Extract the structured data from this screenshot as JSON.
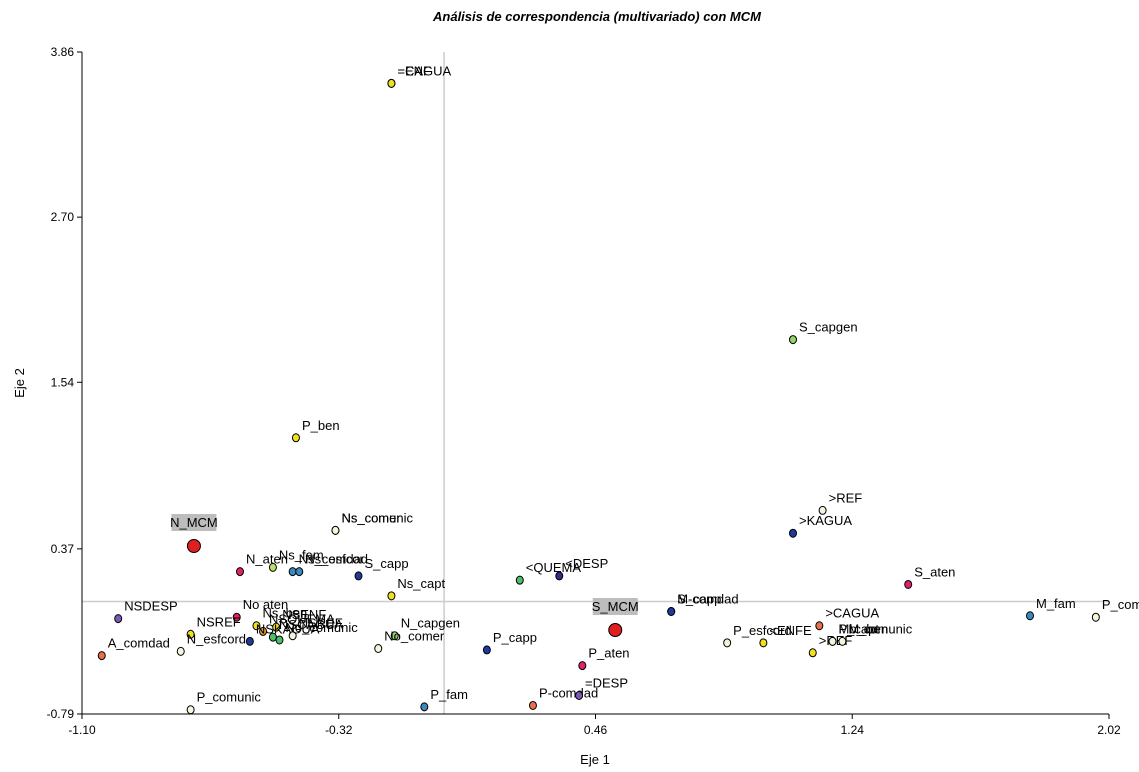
{
  "chart_data": {
    "type": "scatter",
    "title": "Análisis de correspondencia (multivariado) con MCM",
    "xlabel": "Eje 1",
    "ylabel": "Eje 2",
    "xlim": [
      -1.1,
      2.02
    ],
    "ylim": [
      -0.79,
      3.86
    ],
    "xticks": [
      "-1.10",
      "-0.32",
      "0.46",
      "1.24",
      "2.02"
    ],
    "yticks": [
      "-0.79",
      "0.37",
      "1.54",
      "2.70",
      "3.86"
    ],
    "reference_lines": {
      "x": 0.0,
      "y": 0.0
    },
    "points": [
      {
        "label": "=ENF",
        "x": -0.16,
        "y": 3.64,
        "color": "#f0e020"
      },
      {
        "label": "=CAGUA",
        "x": -0.16,
        "y": 3.64,
        "color": "#f0e020"
      },
      {
        "label": "S_capgen",
        "x": 1.06,
        "y": 1.84,
        "color": "#8ed66a"
      },
      {
        "label": "P_ben",
        "x": -0.45,
        "y": 1.15,
        "color": "#f0e020"
      },
      {
        "label": ">REF",
        "x": 1.15,
        "y": 0.64,
        "color": "#f5f5dc"
      },
      {
        "label": ">KAGUA",
        "x": 1.06,
        "y": 0.48,
        "color": "#1e3a9a"
      },
      {
        "label": "N_MCM",
        "x": -0.76,
        "y": 0.39,
        "color": "#e02020",
        "highlight": true
      },
      {
        "label": "Ns_comunic",
        "x": -0.33,
        "y": 0.5,
        "color": "#f5f5dc"
      },
      {
        "label": "Ns_comer",
        "x": -0.33,
        "y": 0.5,
        "color": "#f5f5dc"
      },
      {
        "label": "Ns_fam",
        "x": -0.52,
        "y": 0.24,
        "color": "#b8e068"
      },
      {
        "label": "Ns_comdad",
        "x": -0.46,
        "y": 0.21,
        "color": "#3a8ac0"
      },
      {
        "label": "Ns_esfcor",
        "x": -0.44,
        "y": 0.21,
        "color": "#3a8ac0"
      },
      {
        "label": "S_capp",
        "x": -0.26,
        "y": 0.18,
        "color": "#1e3a9a"
      },
      {
        "label": "N_aten",
        "x": -0.62,
        "y": 0.21,
        "color": "#e0206a"
      },
      {
        "label": "<QUEMA",
        "x": 0.23,
        "y": 0.15,
        "color": "#4cbf6a"
      },
      {
        "label": "<DESP",
        "x": 0.35,
        "y": 0.18,
        "color": "#3a2a8a"
      },
      {
        "label": "Ns_capt",
        "x": -0.16,
        "y": 0.04,
        "color": "#f0e020"
      },
      {
        "label": "S_capp",
        "x": 0.69,
        "y": -0.07,
        "color": "#1e3a9a"
      },
      {
        "label": "M-comdad",
        "x": 0.69,
        "y": -0.07,
        "color": "#1e3a9a"
      },
      {
        "label": "S_aten",
        "x": 1.41,
        "y": 0.12,
        "color": "#e0206a"
      },
      {
        "label": "M_fam",
        "x": 1.78,
        "y": -0.1,
        "color": "#3a8ac0"
      },
      {
        "label": "P_comer",
        "x": 1.98,
        "y": -0.11,
        "color": "#f5f5dc"
      },
      {
        "label": "NSDESP",
        "x": -0.99,
        "y": -0.12,
        "color": "#7a5ab8"
      },
      {
        "label": "No aten",
        "x": -0.63,
        "y": -0.11,
        "color": "#e0206a"
      },
      {
        "label": "Ns_ben",
        "x": -0.57,
        "y": -0.17,
        "color": "#f0e020"
      },
      {
        "label": "NSENF",
        "x": -0.51,
        "y": -0.18,
        "color": "#f0e020"
      },
      {
        "label": "NSREF",
        "x": -0.77,
        "y": -0.23,
        "color": "#f0e020"
      },
      {
        "label": "NSQUEMA",
        "x": -0.55,
        "y": -0.21,
        "color": "#e8a030"
      },
      {
        "label": "N_capgen",
        "x": -0.15,
        "y": -0.24,
        "color": "#8ed66a"
      },
      {
        "label": "NSREF",
        "x": -0.46,
        "y": -0.24,
        "color": "#f5f5dc"
      },
      {
        "label": "NSCAGUA",
        "x": -0.52,
        "y": -0.25,
        "color": "#4cbf6a"
      },
      {
        "label": "NSKAGUA",
        "x": -0.59,
        "y": -0.28,
        "color": "#1e3a9a"
      },
      {
        "label": "No_comunic",
        "x": -0.5,
        "y": -0.27,
        "color": "#4cbf6a"
      },
      {
        "label": "No_comer",
        "x": -0.2,
        "y": -0.33,
        "color": "#f5f5dc"
      },
      {
        "label": "N_esfcord",
        "x": -0.8,
        "y": -0.35,
        "color": "#f5f5dc"
      },
      {
        "label": "A_comdad",
        "x": -1.04,
        "y": -0.38,
        "color": "#e8704a"
      },
      {
        "label": "S_MCM",
        "x": 0.52,
        "y": -0.2,
        "color": "#e02020",
        "highlight": true
      },
      {
        "label": "P_capp",
        "x": 0.13,
        "y": -0.34,
        "color": "#1e3a9a"
      },
      {
        "label": "P_aten",
        "x": 0.42,
        "y": -0.45,
        "color": "#e0206a"
      },
      {
        "label": "P_esfcord",
        "x": 0.86,
        "y": -0.29,
        "color": "#f5f5dc"
      },
      {
        "label": "<ENFE",
        "x": 0.97,
        "y": -0.29,
        "color": "#f0e020"
      },
      {
        "label": ">REF",
        "x": 1.12,
        "y": -0.36,
        "color": "#f0e020"
      },
      {
        "label": ">CAGUA",
        "x": 1.14,
        "y": -0.17,
        "color": "#e8704a"
      },
      {
        "label": "P_capt",
        "x": 1.18,
        "y": -0.28,
        "color": "#f5f5dc"
      },
      {
        "label": "M_ben",
        "x": 1.21,
        "y": -0.28,
        "color": "#f5f5dc"
      },
      {
        "label": "Mb_comunic",
        "x": 1.18,
        "y": -0.28,
        "color": "#f5f5dc"
      },
      {
        "label": "P_fam",
        "x": -0.06,
        "y": -0.74,
        "color": "#3a8ac0"
      },
      {
        "label": "P-comdad",
        "x": 0.27,
        "y": -0.73,
        "color": "#e8704a"
      },
      {
        "label": "=DESP",
        "x": 0.41,
        "y": -0.66,
        "color": "#7a5ab8"
      },
      {
        "label": "P_comunic",
        "x": -0.77,
        "y": -0.76,
        "color": "#f5f5dc"
      }
    ]
  }
}
